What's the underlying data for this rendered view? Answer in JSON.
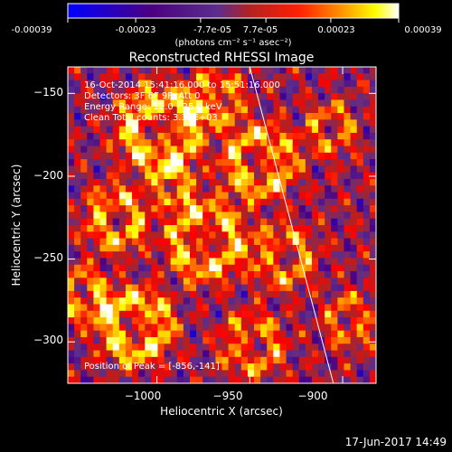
{
  "colorbar": {
    "tick_labels": [
      "-0.00039",
      "-0.00023",
      "-7.7e-05",
      "7.7e-05",
      "0.00023",
      "0.00039"
    ],
    "tick_values": [
      -0.00039,
      -0.00023,
      -7.7e-05,
      7.7e-05,
      0.00023,
      0.00039
    ],
    "range": [
      -0.00039,
      0.00039
    ],
    "units_label": "(photons cm⁻² s⁻¹ asec⁻²)",
    "colormap": [
      "#0000ff",
      "#4b0082",
      "#5b2d8e",
      "#b22222",
      "#ff0000",
      "#ff8c00",
      "#ffff00",
      "#ffffff"
    ]
  },
  "chart_data": {
    "type": "heatmap",
    "title": "Reconstructed RHESSI Image",
    "xlabel": "Heliocentric X (arcsec)",
    "ylabel": "Heliocentric Y (arcsec)",
    "xlim": [
      -1048,
      -882
    ],
    "ylim": [
      -325,
      -134
    ],
    "x_ticks": [
      -1000,
      -950,
      -900
    ],
    "x_tick_labels": [
      "−1000",
      "−950",
      "−900"
    ],
    "y_ticks": [
      -150,
      -200,
      -250,
      -300
    ],
    "y_tick_labels": [
      "−150",
      "−200",
      "−250",
      "−300"
    ],
    "limb_line": [
      [
        -950,
        -134
      ],
      [
        -905,
        -325
      ]
    ],
    "info_lines": [
      "16-Oct-2014 15:41:16.000 to 15:51:16.000",
      "Detectors: 3F 6F 9F, Att 0",
      "Energy Range: 12.0 - 25.0 keV",
      "Clean    Total counts: 3.32E+03"
    ],
    "peak_label": "Position of Peak = [-856,-141]"
  },
  "footer": {
    "timestamp": "17-Jun-2017 14:49"
  }
}
